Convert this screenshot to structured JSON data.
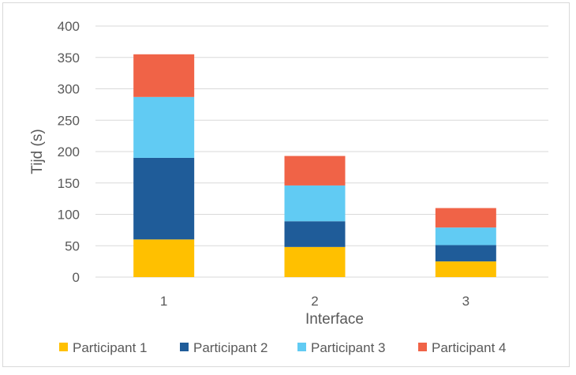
{
  "chart_data": {
    "type": "bar",
    "stacked": true,
    "title": "",
    "xlabel": "Interface",
    "ylabel": "Tijd (s)",
    "categories": [
      "1",
      "2",
      "3"
    ],
    "ylim": [
      0,
      400
    ],
    "yticks": [
      0,
      50,
      100,
      150,
      200,
      250,
      300,
      350,
      400
    ],
    "grid": true,
    "legend_position": "bottom",
    "series": [
      {
        "name": "Participant 1",
        "color": "#FFC000",
        "values": [
          60,
          48,
          25
        ]
      },
      {
        "name": "Participant 2",
        "color": "#1F5C99",
        "values": [
          130,
          41,
          26
        ]
      },
      {
        "name": "Participant 3",
        "color": "#61CBF3",
        "values": [
          97,
          57,
          28
        ]
      },
      {
        "name": "Participant 4",
        "color": "#F06347",
        "values": [
          68,
          47,
          31
        ]
      }
    ]
  }
}
